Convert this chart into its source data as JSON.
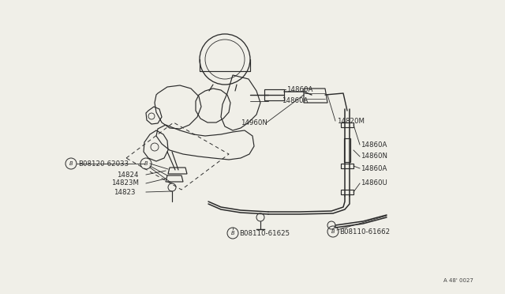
{
  "bg_color": "#f0efe8",
  "line_color": "#2a2a2a",
  "watermark": "A 48' 0027",
  "labels": {
    "14860A_top": [
      "14860A",
      340,
      115
    ],
    "14860A_top2": [
      "14860A",
      352,
      127
    ],
    "14960N": [
      "14960N",
      305,
      155
    ],
    "14820M": [
      "14820M",
      400,
      155
    ],
    "14860A_mid": [
      "14860A",
      400,
      185
    ],
    "14860N_mid": [
      "14860N",
      400,
      200
    ],
    "14860A_bot": [
      "14860A",
      400,
      215
    ],
    "14860U": [
      "14860U",
      400,
      232
    ],
    "B08120_62033": [
      "B08120-62033",
      95,
      208
    ],
    "14824": [
      "14824",
      155,
      221
    ],
    "14823M": [
      "14823M",
      148,
      232
    ],
    "14823": [
      "14823",
      152,
      243
    ],
    "B08110_61625": [
      "B08110-61625",
      258,
      270
    ],
    "B08110_61662": [
      "B08110-61662",
      430,
      285
    ]
  },
  "font_size": 6.2,
  "lw": 0.85
}
